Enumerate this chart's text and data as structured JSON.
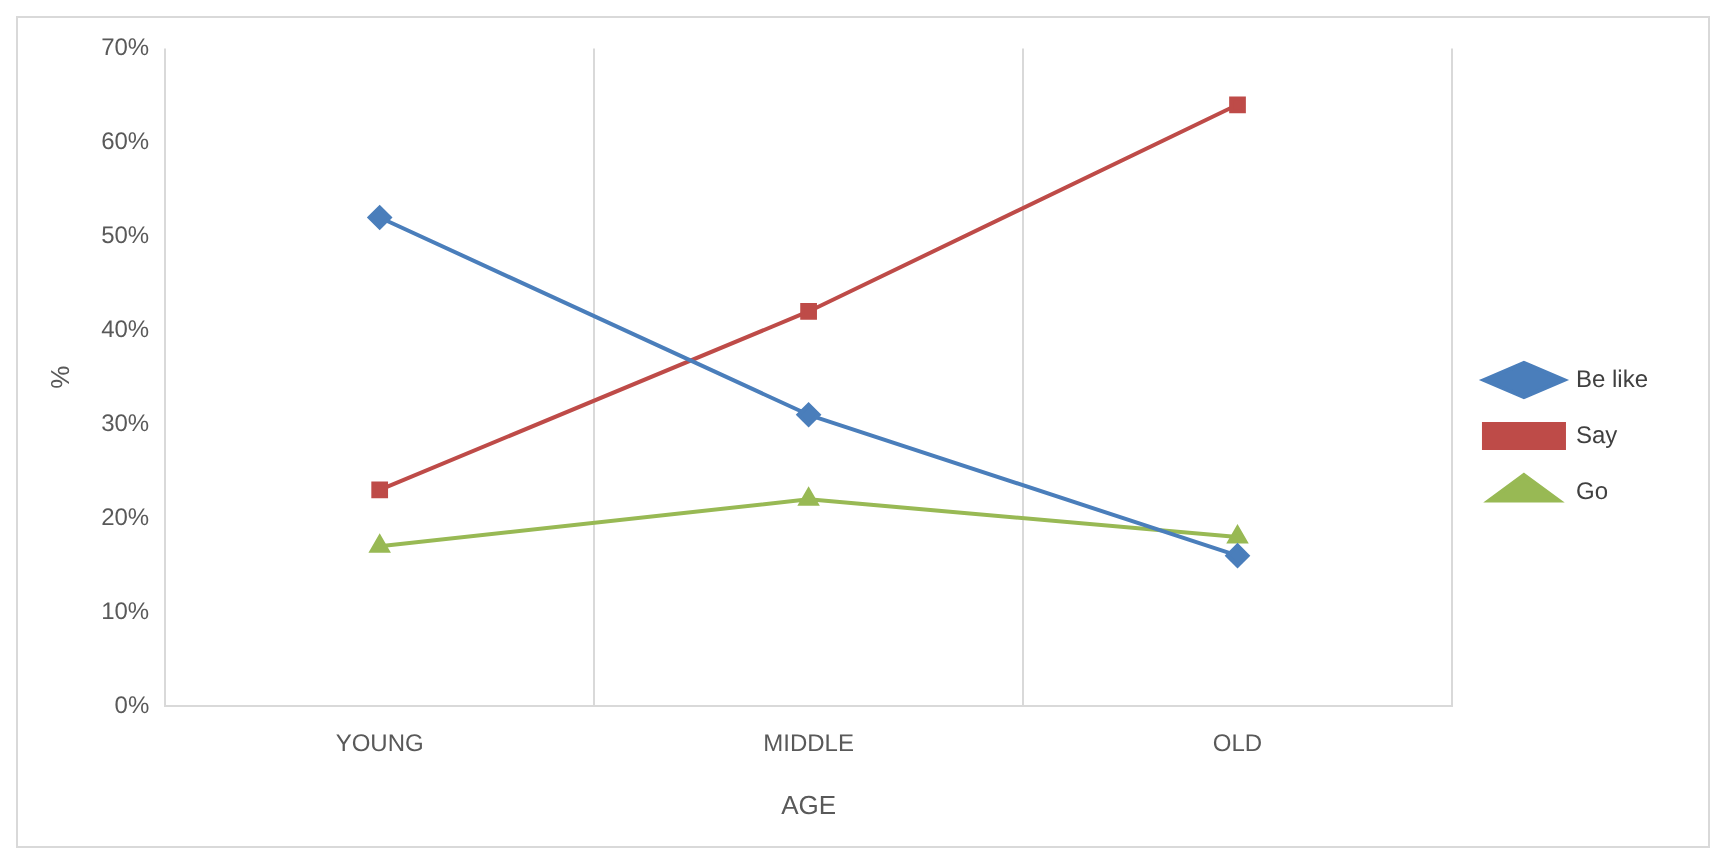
{
  "chart_data": {
    "type": "line",
    "xlabel": "AGE",
    "ylabel": "%",
    "categories": [
      "YOUNG",
      "MIDDLE",
      "OLD"
    ],
    "series": [
      {
        "name": "Be like",
        "color": "#4a7ebb",
        "values": [
          52,
          31,
          16
        ],
        "marker": "diamond"
      },
      {
        "name": "Say",
        "color": "#be4b48",
        "values": [
          23,
          42,
          64
        ],
        "marker": "square"
      },
      {
        "name": "Go",
        "color": "#98b954",
        "values": [
          17,
          22,
          18
        ],
        "marker": "triangle"
      }
    ],
    "ylim": [
      0,
      70
    ],
    "yticks": [
      {
        "value": 0,
        "label": "0%"
      },
      {
        "value": 10,
        "label": "10%"
      },
      {
        "value": 20,
        "label": "20%"
      },
      {
        "value": 30,
        "label": "30%"
      },
      {
        "value": 40,
        "label": "40%"
      },
      {
        "value": 50,
        "label": "50%"
      },
      {
        "value": 60,
        "label": "60%"
      },
      {
        "value": 70,
        "label": "70%"
      }
    ],
    "grid": "x",
    "legend": "right",
    "line_style": "solid"
  }
}
